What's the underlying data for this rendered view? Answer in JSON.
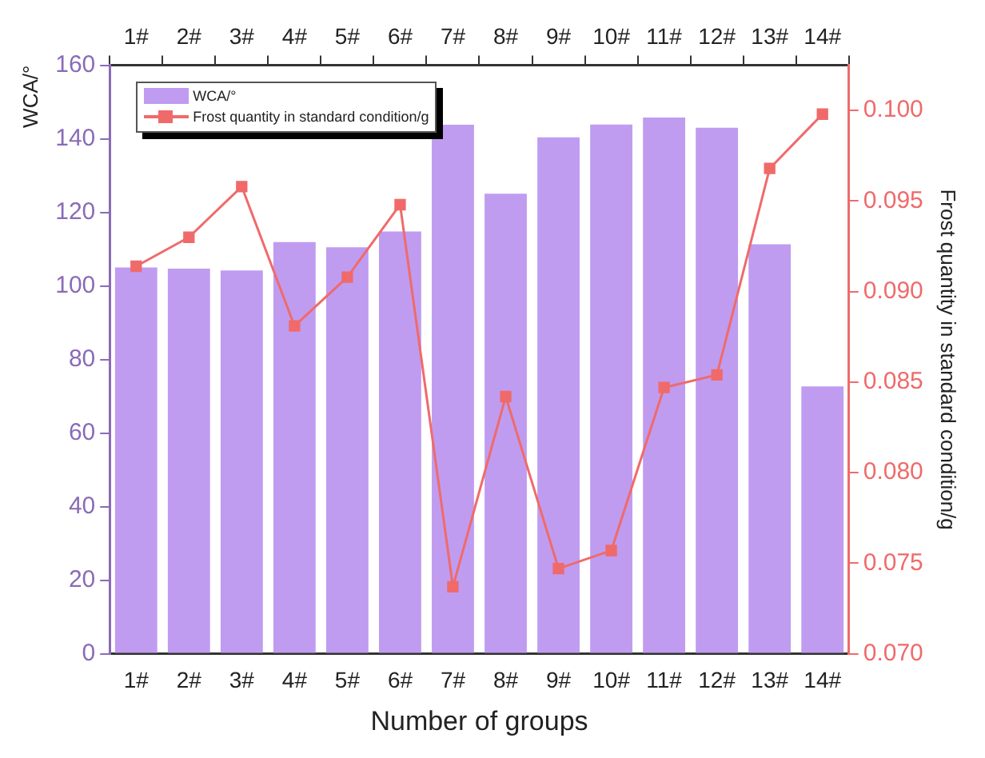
{
  "chart_data": {
    "type": "bar",
    "xlabel": "Number of groups",
    "ylabel": "WCA/°",
    "y2label": "Frost quantity in standard condition/g",
    "categories": [
      "1#",
      "2#",
      "3#",
      "4#",
      "5#",
      "6#",
      "7#",
      "8#",
      "9#",
      "10#",
      "11#",
      "12#",
      "13#",
      "14#"
    ],
    "series": [
      {
        "name": "WCA/°",
        "type": "bar",
        "color": "#bf9cf0",
        "values": [
          105,
          104.7,
          104.2,
          111.9,
          110.5,
          114.8,
          143.8,
          125.1,
          140.4,
          143.9,
          145.8,
          143,
          111.3,
          72.7
        ]
      },
      {
        "name": "Frost quantity in standard condition/g",
        "type": "line",
        "axis": "y2",
        "color": "#f06a6a",
        "marker": "square",
        "values": [
          0.0914,
          0.093,
          0.0958,
          0.0881,
          0.0908,
          0.0948,
          0.0737,
          0.0842,
          0.0747,
          0.0757,
          0.0847,
          0.0854,
          0.0968,
          0.0998
        ]
      }
    ],
    "ylim": [
      0,
      160
    ],
    "yticks": [
      0,
      20,
      40,
      60,
      80,
      100,
      120,
      140,
      160
    ],
    "y2lim": [
      0.07,
      0.1025
    ],
    "y2ticks": [
      {
        "value": 0.07,
        "label": "0.070"
      },
      {
        "value": 0.075,
        "label": "0.075"
      },
      {
        "value": 0.08,
        "label": "0.080"
      },
      {
        "value": 0.085,
        "label": "0.085"
      },
      {
        "value": 0.09,
        "label": "0.090"
      },
      {
        "value": 0.095,
        "label": "0.095"
      },
      {
        "value": 0.1,
        "label": "0.100"
      }
    ],
    "grid": false,
    "legend": "top left"
  }
}
